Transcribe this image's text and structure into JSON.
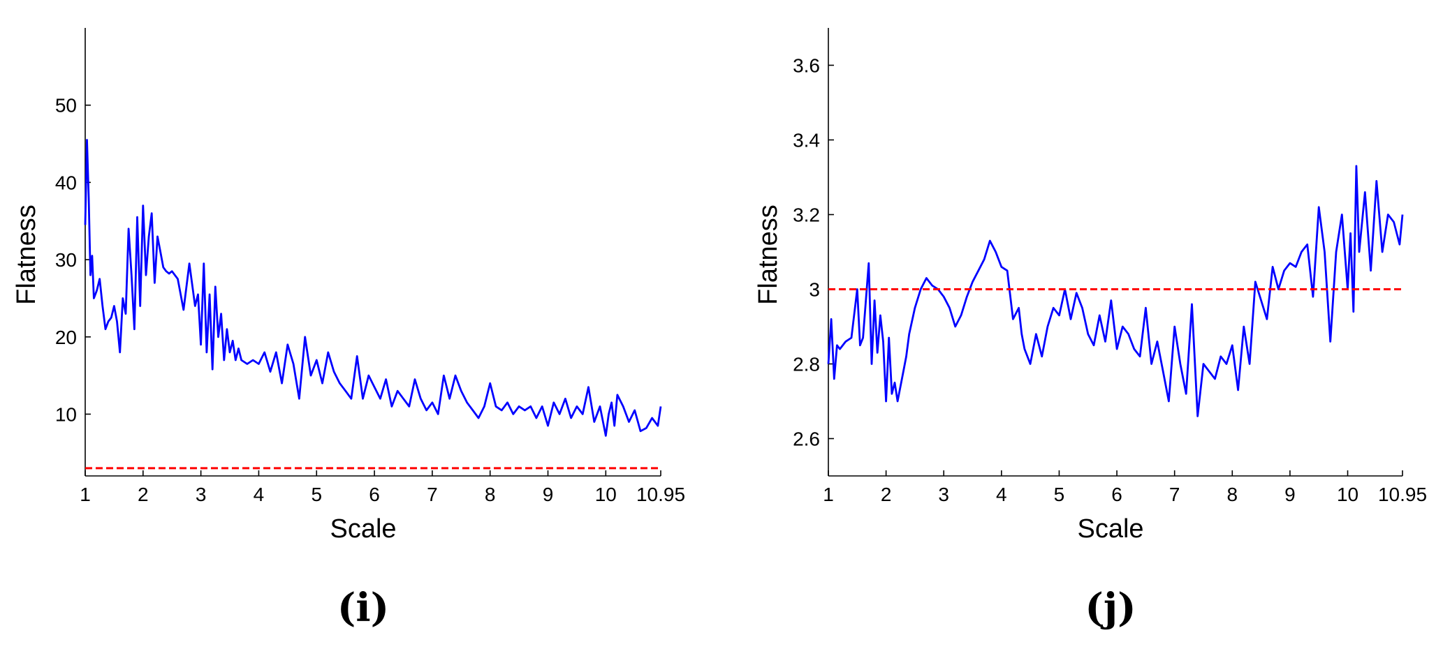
{
  "figure": {
    "panels": [
      "(i)",
      "(j)"
    ]
  },
  "chart_data": [
    {
      "type": "line",
      "panel_label": "(i)",
      "xlabel": "Scale",
      "ylabel": "Flatness",
      "xlim": [
        1,
        10.95
      ],
      "ylim": [
        2,
        60
      ],
      "xticks": [
        1,
        2,
        3,
        4,
        5,
        6,
        7,
        8,
        9,
        10,
        10.95
      ],
      "xtick_labels": [
        "1",
        "2",
        "3",
        "4",
        "5",
        "6",
        "7",
        "8",
        "9",
        "10",
        "10.95"
      ],
      "yticks": [
        10,
        20,
        30,
        40,
        50
      ],
      "ytick_labels": [
        "10",
        "20",
        "30",
        "40",
        "50"
      ],
      "series": [
        {
          "color": "#0000ff",
          "style": "solid",
          "x": [
            1.0,
            1.03,
            1.06,
            1.09,
            1.12,
            1.15,
            1.2,
            1.25,
            1.3,
            1.35,
            1.4,
            1.45,
            1.5,
            1.55,
            1.6,
            1.65,
            1.7,
            1.75,
            1.8,
            1.85,
            1.9,
            1.95,
            2.0,
            2.05,
            2.1,
            2.15,
            2.2,
            2.25,
            2.3,
            2.35,
            2.4,
            2.45,
            2.5,
            2.6,
            2.7,
            2.8,
            2.9,
            2.95,
            3.0,
            3.05,
            3.1,
            3.15,
            3.2,
            3.25,
            3.3,
            3.35,
            3.4,
            3.45,
            3.5,
            3.55,
            3.6,
            3.65,
            3.7,
            3.8,
            3.9,
            4.0,
            4.1,
            4.2,
            4.3,
            4.4,
            4.5,
            4.6,
            4.7,
            4.8,
            4.9,
            5.0,
            5.1,
            5.2,
            5.3,
            5.4,
            5.5,
            5.6,
            5.7,
            5.8,
            5.9,
            6.0,
            6.1,
            6.2,
            6.3,
            6.4,
            6.5,
            6.6,
            6.7,
            6.8,
            6.9,
            7.0,
            7.1,
            7.2,
            7.3,
            7.4,
            7.5,
            7.6,
            7.7,
            7.8,
            7.9,
            8.0,
            8.1,
            8.2,
            8.3,
            8.4,
            8.5,
            8.6,
            8.7,
            8.8,
            8.9,
            9.0,
            9.1,
            9.2,
            9.3,
            9.4,
            9.5,
            9.6,
            9.7,
            9.8,
            9.9,
            10.0,
            10.05,
            10.1,
            10.15,
            10.2,
            10.3,
            10.4,
            10.5,
            10.6,
            10.7,
            10.8,
            10.9,
            10.95
          ],
          "y": [
            34.5,
            45.5,
            38,
            28,
            30.5,
            25,
            26,
            27.5,
            24,
            21,
            22,
            22.5,
            24,
            22,
            18,
            25,
            23,
            34,
            28,
            21,
            35.5,
            24,
            37,
            28,
            33,
            36,
            27,
            33,
            31,
            29,
            28.5,
            28.2,
            28.5,
            27.5,
            23.5,
            29.5,
            24,
            25.5,
            19,
            29.5,
            18,
            25.5,
            15.8,
            26.5,
            20,
            23,
            17,
            21,
            18,
            19.5,
            17,
            18.5,
            17,
            16.5,
            17,
            16.5,
            18,
            15.5,
            18,
            14,
            19,
            16.5,
            12,
            20,
            15,
            17,
            14,
            18,
            15.5,
            14,
            13,
            12,
            17.5,
            12,
            15,
            13.5,
            12,
            14.5,
            11,
            13,
            12,
            11,
            14.5,
            12,
            10.5,
            11.5,
            10,
            15,
            12,
            15,
            13,
            11.5,
            10.5,
            9.5,
            11,
            14,
            11,
            10.5,
            11.5,
            10,
            11,
            10.5,
            11,
            9.5,
            11,
            8.5,
            11.5,
            10,
            12,
            9.5,
            11,
            10,
            13.5,
            9,
            11,
            7.2,
            10,
            11.5,
            8.5,
            12.5,
            11,
            9,
            10.5,
            7.8,
            8.2,
            9.5,
            8.5,
            11
          ]
        },
        {
          "color": "#ff0000",
          "style": "dashed",
          "x": [
            1,
            10.95
          ],
          "y": [
            3,
            3
          ]
        }
      ]
    },
    {
      "type": "line",
      "panel_label": "(j)",
      "xlabel": "Scale",
      "ylabel": "Flatness",
      "xlim": [
        1,
        10.95
      ],
      "ylim": [
        2.5,
        3.7
      ],
      "xticks": [
        1,
        2,
        3,
        4,
        5,
        6,
        7,
        8,
        9,
        10,
        10.95
      ],
      "xtick_labels": [
        "1",
        "2",
        "3",
        "4",
        "5",
        "6",
        "7",
        "8",
        "9",
        "10",
        "10.95"
      ],
      "yticks": [
        2.6,
        2.8,
        3.0,
        3.2,
        3.4,
        3.6
      ],
      "ytick_labels": [
        "2.6",
        "2.8",
        "3",
        "3.2",
        "3.4",
        "3.6"
      ],
      "series": [
        {
          "color": "#0000ff",
          "style": "solid",
          "x": [
            1.0,
            1.05,
            1.1,
            1.15,
            1.2,
            1.3,
            1.4,
            1.5,
            1.55,
            1.6,
            1.7,
            1.75,
            1.8,
            1.85,
            1.9,
            1.95,
            2.0,
            2.05,
            2.1,
            2.15,
            2.2,
            2.3,
            2.35,
            2.4,
            2.5,
            2.6,
            2.7,
            2.8,
            2.9,
            3.0,
            3.1,
            3.2,
            3.3,
            3.4,
            3.5,
            3.6,
            3.7,
            3.8,
            3.9,
            4.0,
            4.1,
            4.2,
            4.3,
            4.35,
            4.4,
            4.5,
            4.6,
            4.7,
            4.8,
            4.9,
            5.0,
            5.1,
            5.2,
            5.3,
            5.4,
            5.5,
            5.6,
            5.7,
            5.8,
            5.9,
            6.0,
            6.1,
            6.2,
            6.3,
            6.4,
            6.5,
            6.6,
            6.7,
            6.8,
            6.9,
            7.0,
            7.1,
            7.2,
            7.3,
            7.4,
            7.5,
            7.6,
            7.7,
            7.8,
            7.9,
            8.0,
            8.1,
            8.2,
            8.3,
            8.4,
            8.5,
            8.6,
            8.7,
            8.8,
            8.9,
            9.0,
            9.1,
            9.2,
            9.3,
            9.4,
            9.5,
            9.6,
            9.7,
            9.8,
            9.9,
            10.0,
            10.05,
            10.1,
            10.15,
            10.2,
            10.3,
            10.4,
            10.5,
            10.6,
            10.7,
            10.8,
            10.9,
            10.95
          ],
          "y": [
            2.8,
            2.92,
            2.76,
            2.85,
            2.84,
            2.86,
            2.87,
            3.0,
            2.85,
            2.87,
            3.07,
            2.8,
            2.97,
            2.83,
            2.93,
            2.86,
            2.7,
            2.87,
            2.72,
            2.75,
            2.7,
            2.78,
            2.82,
            2.88,
            2.95,
            3.0,
            3.03,
            3.01,
            3.0,
            2.98,
            2.95,
            2.9,
            2.93,
            2.98,
            3.02,
            3.05,
            3.08,
            3.13,
            3.1,
            3.06,
            3.05,
            2.92,
            2.95,
            2.88,
            2.84,
            2.8,
            2.88,
            2.82,
            2.9,
            2.95,
            2.93,
            3.0,
            2.92,
            2.99,
            2.95,
            2.88,
            2.85,
            2.93,
            2.86,
            2.97,
            2.84,
            2.9,
            2.88,
            2.84,
            2.82,
            2.95,
            2.8,
            2.86,
            2.78,
            2.7,
            2.9,
            2.8,
            2.72,
            2.96,
            2.66,
            2.8,
            2.78,
            2.76,
            2.82,
            2.8,
            2.85,
            2.73,
            2.9,
            2.8,
            3.02,
            2.97,
            2.92,
            3.06,
            3.0,
            3.05,
            3.07,
            3.06,
            3.1,
            3.12,
            2.98,
            3.22,
            3.1,
            2.86,
            3.1,
            3.2,
            3.0,
            3.15,
            2.94,
            3.33,
            3.1,
            3.26,
            3.05,
            3.29,
            3.1,
            3.2,
            3.18,
            3.12,
            3.2
          ]
        },
        {
          "color": "#ff0000",
          "style": "dashed",
          "x": [
            1,
            10.95
          ],
          "y": [
            3,
            3
          ]
        }
      ]
    }
  ]
}
